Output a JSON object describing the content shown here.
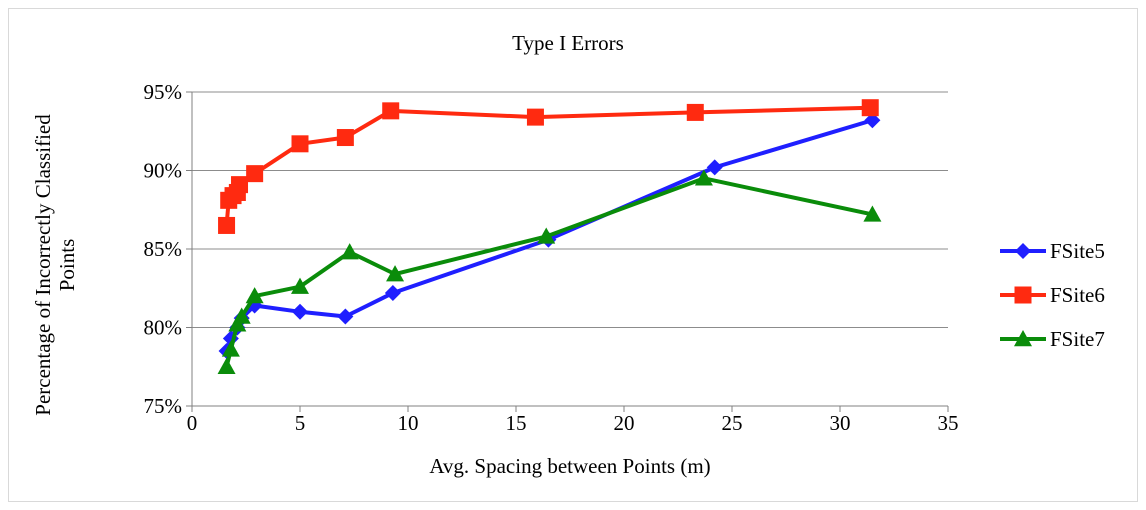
{
  "chart_data": {
    "type": "line",
    "title": "Type I Errors",
    "xlabel": "Avg. Spacing between Points (m)",
    "ylabel_lines": [
      "Percentage of Incorrectly Classified",
      "Points"
    ],
    "xlim": [
      0,
      35
    ],
    "ylim": [
      75,
      95
    ],
    "x_ticks": [
      "0",
      "5",
      "10",
      "15",
      "20",
      "25",
      "30",
      "35"
    ],
    "y_ticks": [
      "75%",
      "80%",
      "85%",
      "90%",
      "95%"
    ],
    "grid": "horizontal",
    "legend_position": "right",
    "series": [
      {
        "name": "FSite5",
        "color": "#1f1fff",
        "marker": "diamond",
        "x": [
          1.6,
          1.8,
          2.1,
          2.3,
          2.9,
          5.0,
          7.1,
          9.3,
          16.5,
          24.2,
          31.5
        ],
        "y": [
          78.5,
          79.3,
          80.0,
          80.6,
          81.4,
          81.0,
          80.7,
          82.2,
          85.6,
          90.2,
          93.2
        ]
      },
      {
        "name": "FSite6",
        "color": "#ff2a10",
        "marker": "square",
        "x": [
          1.6,
          1.7,
          1.9,
          2.1,
          2.2,
          2.9,
          5.0,
          7.1,
          9.2,
          15.9,
          23.3,
          31.4
        ],
        "y": [
          86.5,
          88.1,
          88.4,
          88.6,
          89.1,
          89.8,
          91.7,
          92.1,
          93.8,
          93.4,
          93.7,
          94.0
        ]
      },
      {
        "name": "FSite7",
        "color": "#0a8c0a",
        "marker": "triangle",
        "x": [
          1.6,
          1.8,
          2.1,
          2.3,
          2.9,
          5.0,
          7.3,
          9.4,
          16.4,
          23.7,
          31.5
        ],
        "y": [
          77.5,
          78.6,
          80.2,
          80.7,
          82.0,
          82.6,
          84.8,
          83.4,
          85.8,
          89.5,
          87.2
        ]
      }
    ]
  }
}
